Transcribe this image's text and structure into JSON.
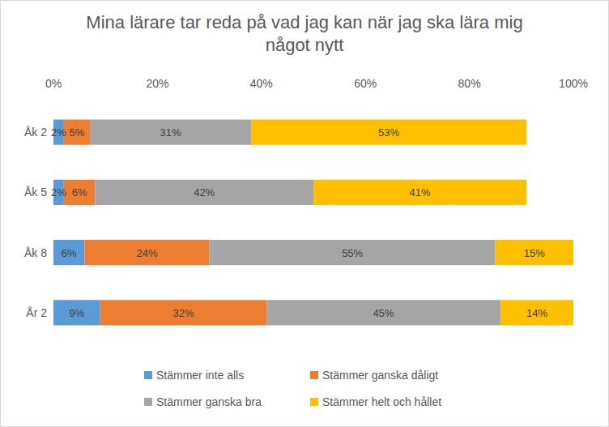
{
  "chart_data": {
    "type": "bar",
    "title": "Mina lärare tar reda på vad jag kan när jag ska lära mig något nytt",
    "orientation": "horizontal",
    "stacked": true,
    "data_labels": true,
    "grid": false,
    "legend": "bottom",
    "categories": [
      "Åk 2",
      "Åk 5",
      "Åk 8",
      "År 2"
    ],
    "xlim": [
      0,
      100
    ],
    "xticks": [
      {
        "value": 0,
        "label": "0%"
      },
      {
        "value": 20,
        "label": "20%"
      },
      {
        "value": 40,
        "label": "40%"
      },
      {
        "value": 60,
        "label": "60%"
      },
      {
        "value": 80,
        "label": "80%"
      },
      {
        "value": 100,
        "label": "100%"
      }
    ],
    "series": [
      {
        "name": "Stämmer inte alls",
        "color": "#5b9bd5",
        "values": [
          2,
          2,
          6,
          9
        ],
        "value_labels": [
          "2%",
          "2%",
          "6%",
          "9%"
        ]
      },
      {
        "name": "Stämmer ganska dåligt",
        "color": "#ed7d31",
        "values": [
          5,
          6,
          24,
          32
        ],
        "value_labels": [
          "5%",
          "6%",
          "24%",
          "32%"
        ]
      },
      {
        "name": "Stämmer ganska bra",
        "color": "#a5a5a5",
        "values": [
          31,
          42,
          55,
          45
        ],
        "value_labels": [
          "31%",
          "42%",
          "55%",
          "45%"
        ]
      },
      {
        "name": "Stämmer helt och hållet",
        "color": "#ffc000",
        "values": [
          53,
          41,
          15,
          14
        ],
        "value_labels": [
          "53%",
          "41%",
          "15%",
          "14%"
        ]
      }
    ]
  }
}
